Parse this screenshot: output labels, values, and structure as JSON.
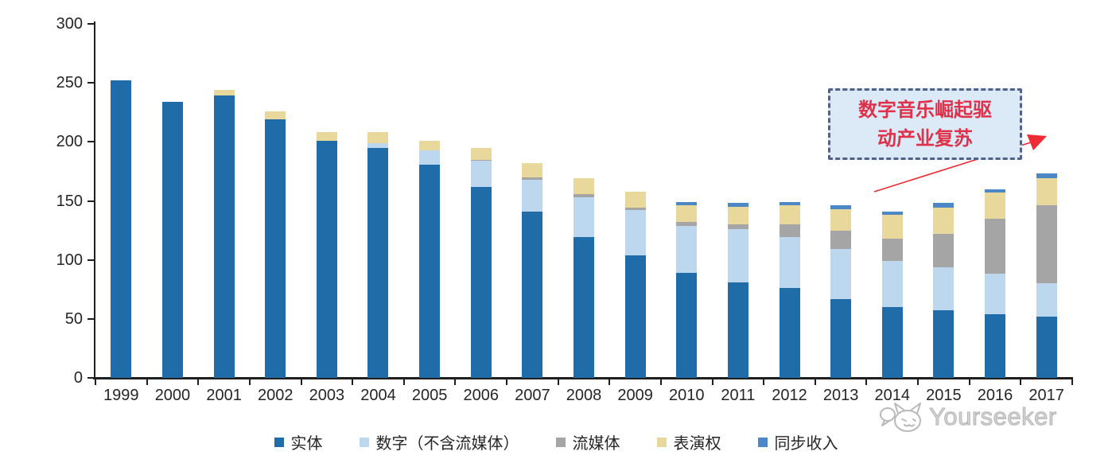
{
  "chart_data": {
    "type": "bar",
    "stacked": true,
    "title": "",
    "xlabel": "",
    "ylabel": "",
    "ylim": [
      0,
      300
    ],
    "yticks": [
      0,
      50,
      100,
      150,
      200,
      250,
      300
    ],
    "grid": false,
    "legend_position": "bottom",
    "categories": [
      "1999",
      "2000",
      "2001",
      "2002",
      "2003",
      "2004",
      "2005",
      "2006",
      "2007",
      "2008",
      "2009",
      "2010",
      "2011",
      "2012",
      "2013",
      "2014",
      "2015",
      "2016",
      "2017"
    ],
    "series": [
      {
        "name": "实体",
        "color": "#1F6CA9",
        "values": [
          252,
          234,
          239,
          219,
          201,
          195,
          181,
          162,
          141,
          119,
          104,
          89,
          81,
          76,
          67,
          60,
          57,
          54,
          52
        ]
      },
      {
        "name": "数字（不含流媒体）",
        "color": "#BDD7EE",
        "values": [
          0,
          0,
          0,
          0,
          0,
          4,
          12,
          22,
          27,
          34,
          38,
          40,
          45,
          43,
          42,
          39,
          37,
          34,
          28
        ]
      },
      {
        "name": "流媒体",
        "color": "#A5A5A5",
        "values": [
          0,
          0,
          0,
          0,
          0,
          0,
          0,
          1,
          2,
          3,
          2,
          3,
          4,
          11,
          16,
          19,
          28,
          47,
          66
        ]
      },
      {
        "name": "表演权",
        "color": "#E9D89C",
        "values": [
          0,
          0,
          5,
          7,
          7,
          9,
          8,
          10,
          12,
          13,
          14,
          14,
          15,
          16,
          18,
          20,
          22,
          22,
          23
        ]
      },
      {
        "name": "同步收入",
        "color": "#4C87C6",
        "values": [
          0,
          0,
          0,
          0,
          0,
          0,
          0,
          0,
          0,
          0,
          0,
          3,
          3,
          3,
          3,
          3,
          4,
          3,
          4
        ]
      }
    ],
    "totals": [
      252,
      234,
      244,
      226,
      208,
      208,
      201,
      195,
      182,
      169,
      158,
      149,
      148,
      149,
      146,
      141,
      148,
      160,
      173
    ]
  },
  "annotation": {
    "line1": "数字音乐崛起驱",
    "line2": "动产业复苏",
    "full_text": "数字音乐崛起驱动产业复苏",
    "text_color": "#E0314A",
    "box_fill": "#DCE9F7",
    "box_border": "#50618E",
    "arrow_color": "#EE2B35"
  },
  "watermark": {
    "text": "Yourseeker"
  }
}
